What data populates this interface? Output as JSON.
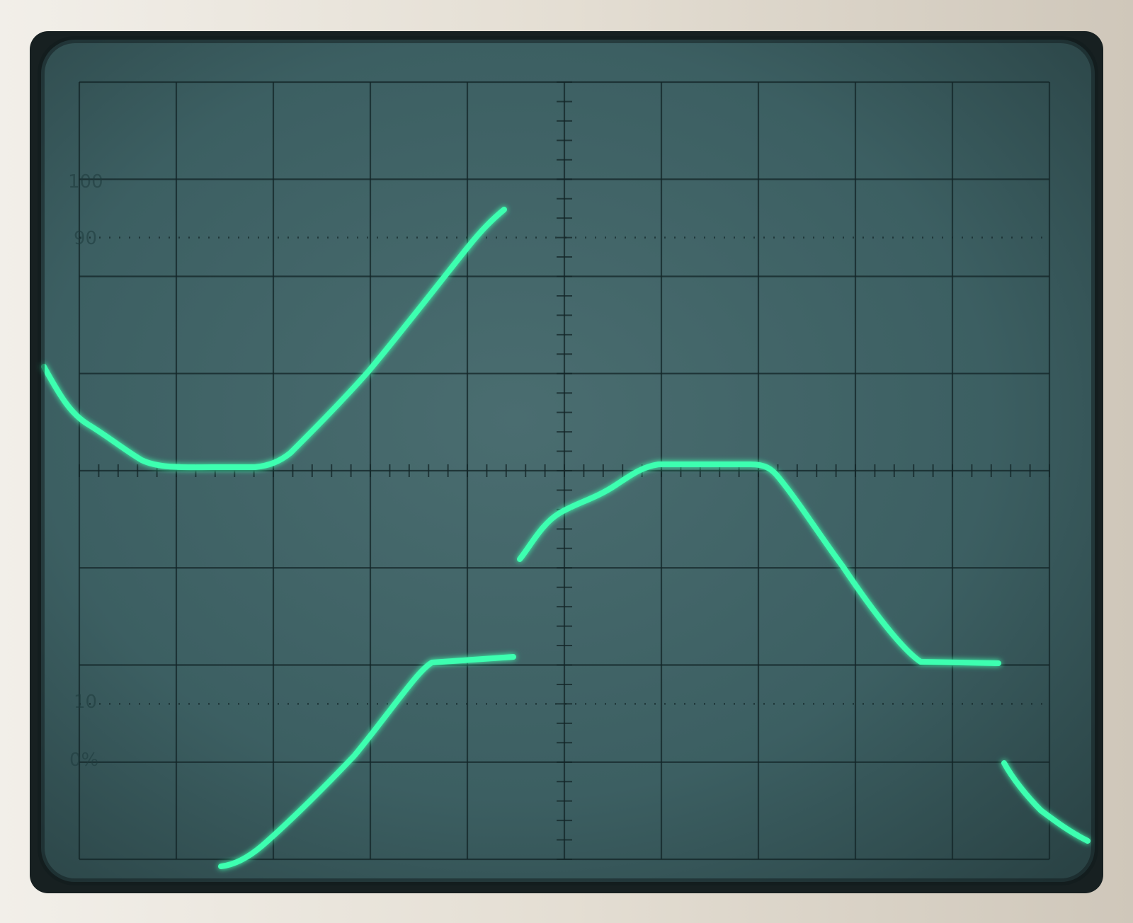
{
  "graticule_labels": {
    "label_100": "100",
    "label_90": "90",
    "label_10": "10",
    "label_0": "0%"
  },
  "colors": {
    "bezel": "#1b2425",
    "screen": "#3f6266",
    "trace": "#3dffb0",
    "grid": "#132527"
  },
  "grid": {
    "columns": 10,
    "rows": 8,
    "minor_ticks_per_division": 5
  }
}
